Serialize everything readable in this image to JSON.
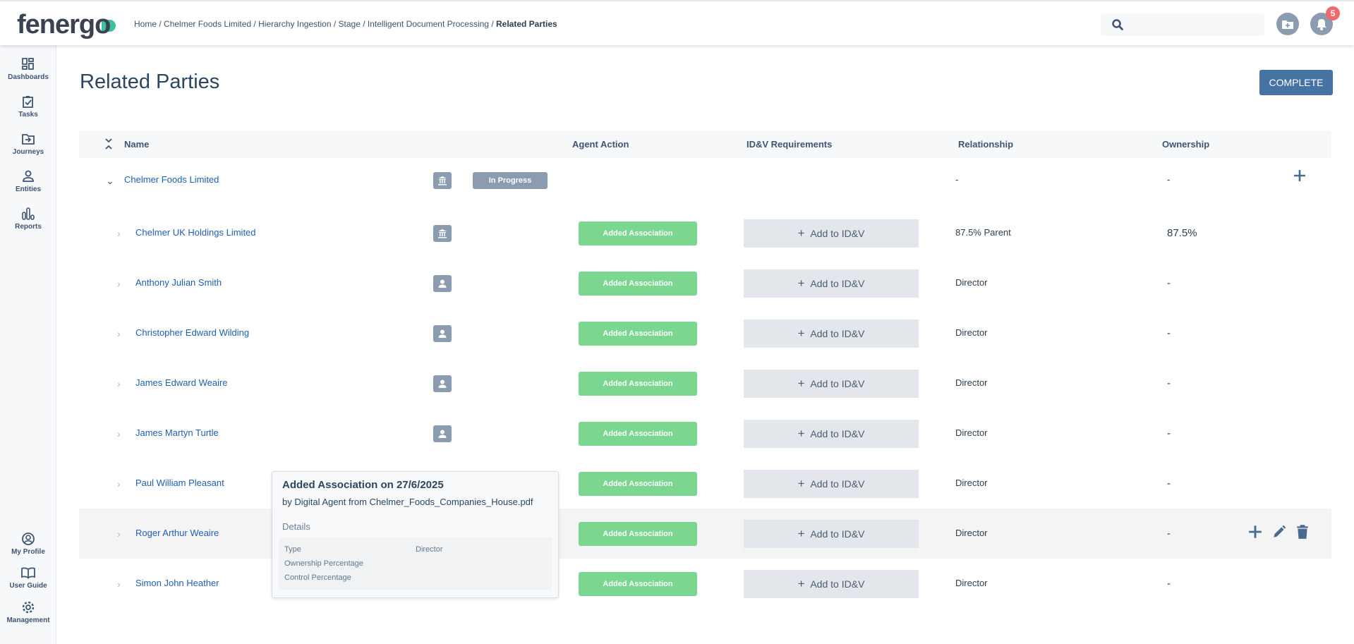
{
  "header": {
    "logo": "fenergo",
    "breadcrumb": [
      "Home",
      "Chelmer Foods Limited",
      "Hierarchy Ingestion",
      "Stage",
      "Intelligent Document Processing"
    ],
    "breadcrumb_current": "Related Parties",
    "notification_count": "5",
    "search_placeholder": ""
  },
  "sidebar": {
    "items": [
      {
        "label": "Dashboards",
        "icon": "dashboard-icon"
      },
      {
        "label": "Tasks",
        "icon": "clipboard-check-icon"
      },
      {
        "label": "Journeys",
        "icon": "folder-arrow-icon"
      },
      {
        "label": "Entities",
        "icon": "person-icon"
      },
      {
        "label": "Reports",
        "icon": "bar-chart-icon"
      }
    ],
    "bottom": [
      {
        "label": "My Profile",
        "icon": "user-circle-icon"
      },
      {
        "label": "User Guide",
        "icon": "book-icon"
      },
      {
        "label": "Management",
        "icon": "gear-icon"
      }
    ]
  },
  "page": {
    "title": "Related Parties",
    "complete_label": "COMPLETE"
  },
  "table": {
    "headers": {
      "name": "Name",
      "agent_action": "Agent Action",
      "idv": "ID&V Requirements",
      "relationship": "Relationship",
      "ownership": "Ownership"
    },
    "root": {
      "name": "Chelmer Foods Limited",
      "type": "company",
      "status": "In Progress",
      "relationship": "-",
      "ownership": "-"
    },
    "rows": [
      {
        "name": "Chelmer UK Holdings Limited",
        "type": "company",
        "agent_action": "Added Association",
        "idv": "Add to ID&V",
        "relationship": "87.5% Parent",
        "ownership": "87.5%"
      },
      {
        "name": "Anthony Julian Smith",
        "type": "person",
        "agent_action": "Added Association",
        "idv": "Add to ID&V",
        "relationship": "Director",
        "ownership": "-"
      },
      {
        "name": "Christopher Edward Wilding",
        "type": "person",
        "agent_action": "Added Association",
        "idv": "Add to ID&V",
        "relationship": "Director",
        "ownership": "-"
      },
      {
        "name": "James Edward Weaire",
        "type": "person",
        "agent_action": "Added Association",
        "idv": "Add to ID&V",
        "relationship": "Director",
        "ownership": "-"
      },
      {
        "name": "James Martyn Turtle",
        "type": "person",
        "agent_action": "Added Association",
        "idv": "Add to ID&V",
        "relationship": "Director",
        "ownership": "-"
      },
      {
        "name": "Paul William Pleasant",
        "type": "person",
        "agent_action": "Added Association",
        "idv": "Add to ID&V",
        "relationship": "Director",
        "ownership": "-"
      },
      {
        "name": "Roger Arthur Weaire",
        "type": "person",
        "agent_action": "Added Association",
        "idv": "Add to ID&V",
        "relationship": "Director",
        "ownership": "-",
        "hovered": true
      },
      {
        "name": "Simon John Heather",
        "type": "person",
        "agent_action": "Added Association",
        "idv": "Add to ID&V",
        "relationship": "Director",
        "ownership": "-"
      }
    ]
  },
  "popover": {
    "title": "Added Association on 27/6/2025",
    "subtitle": "by Digital Agent from Chelmer_Foods_Companies_House.pdf",
    "details_label": "Details",
    "fields": [
      {
        "label": "Type",
        "value": "Director"
      },
      {
        "label": "Ownership Percentage",
        "value": ""
      },
      {
        "label": "Control Percentage",
        "value": ""
      }
    ]
  },
  "colors": {
    "primary": "#4673a3",
    "added": "#7bd68f",
    "link": "#1e60b0",
    "badge": "#ef6b6b"
  }
}
